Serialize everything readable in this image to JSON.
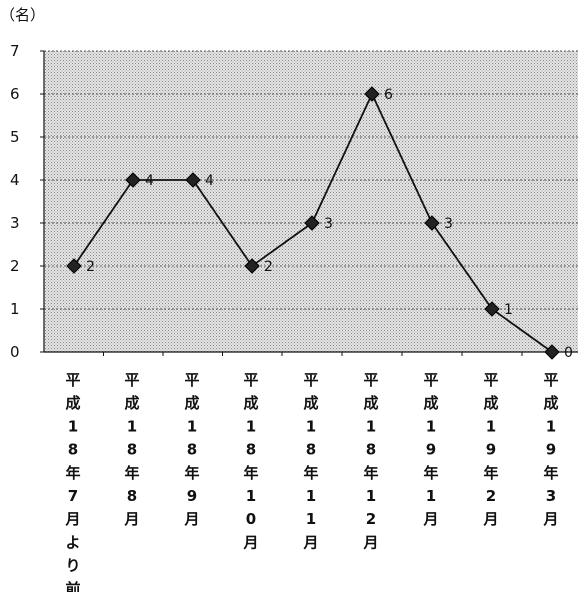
{
  "chart_data": {
    "type": "line",
    "unit_label": "（名）",
    "ylim": [
      0,
      7
    ],
    "yticks": [
      0,
      1,
      2,
      3,
      4,
      5,
      6,
      7
    ],
    "grid": true,
    "categories": [
      "平成18年7月より前",
      "平成18年8月",
      "平成18年9月",
      "平成18年10月",
      "平成18年11月",
      "平成18年12月",
      "平成19年1月",
      "平成19年2月",
      "平成19年3月"
    ],
    "series": [
      {
        "values": [
          2,
          4,
          4,
          2,
          3,
          6,
          3,
          1,
          0
        ]
      }
    ],
    "data_labels": [
      "2",
      "4",
      "4",
      "2",
      "3",
      "6",
      "3",
      "1",
      "0"
    ],
    "colors": {
      "plot_bg": "#cfcfcf",
      "line": "#111111",
      "marker": "#222222",
      "grid": "#555555"
    }
  }
}
